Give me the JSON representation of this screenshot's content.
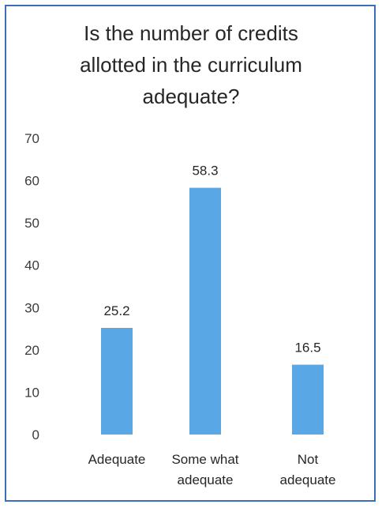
{
  "chart_data": {
    "type": "bar",
    "title": "Is the number of credits allotted in the curriculum adequate?",
    "title_lines": [
      "Is the number of credits",
      "allotted in the curriculum",
      "adequate?"
    ],
    "categories": [
      "Adequate",
      "Some what adequate",
      "Not adequate"
    ],
    "category_lines": [
      [
        "Adequate"
      ],
      [
        "Some what",
        "adequate"
      ],
      [
        "Not",
        "adequate"
      ]
    ],
    "values": [
      25.2,
      58.3,
      16.5
    ],
    "data_labels": [
      "25.2",
      "58.3",
      "16.5"
    ],
    "ylim": [
      0,
      70
    ],
    "yticks": [
      0,
      10,
      20,
      30,
      40,
      50,
      60,
      70
    ],
    "grid": false,
    "legend": "none",
    "bar_color": "#5aa7e6"
  }
}
